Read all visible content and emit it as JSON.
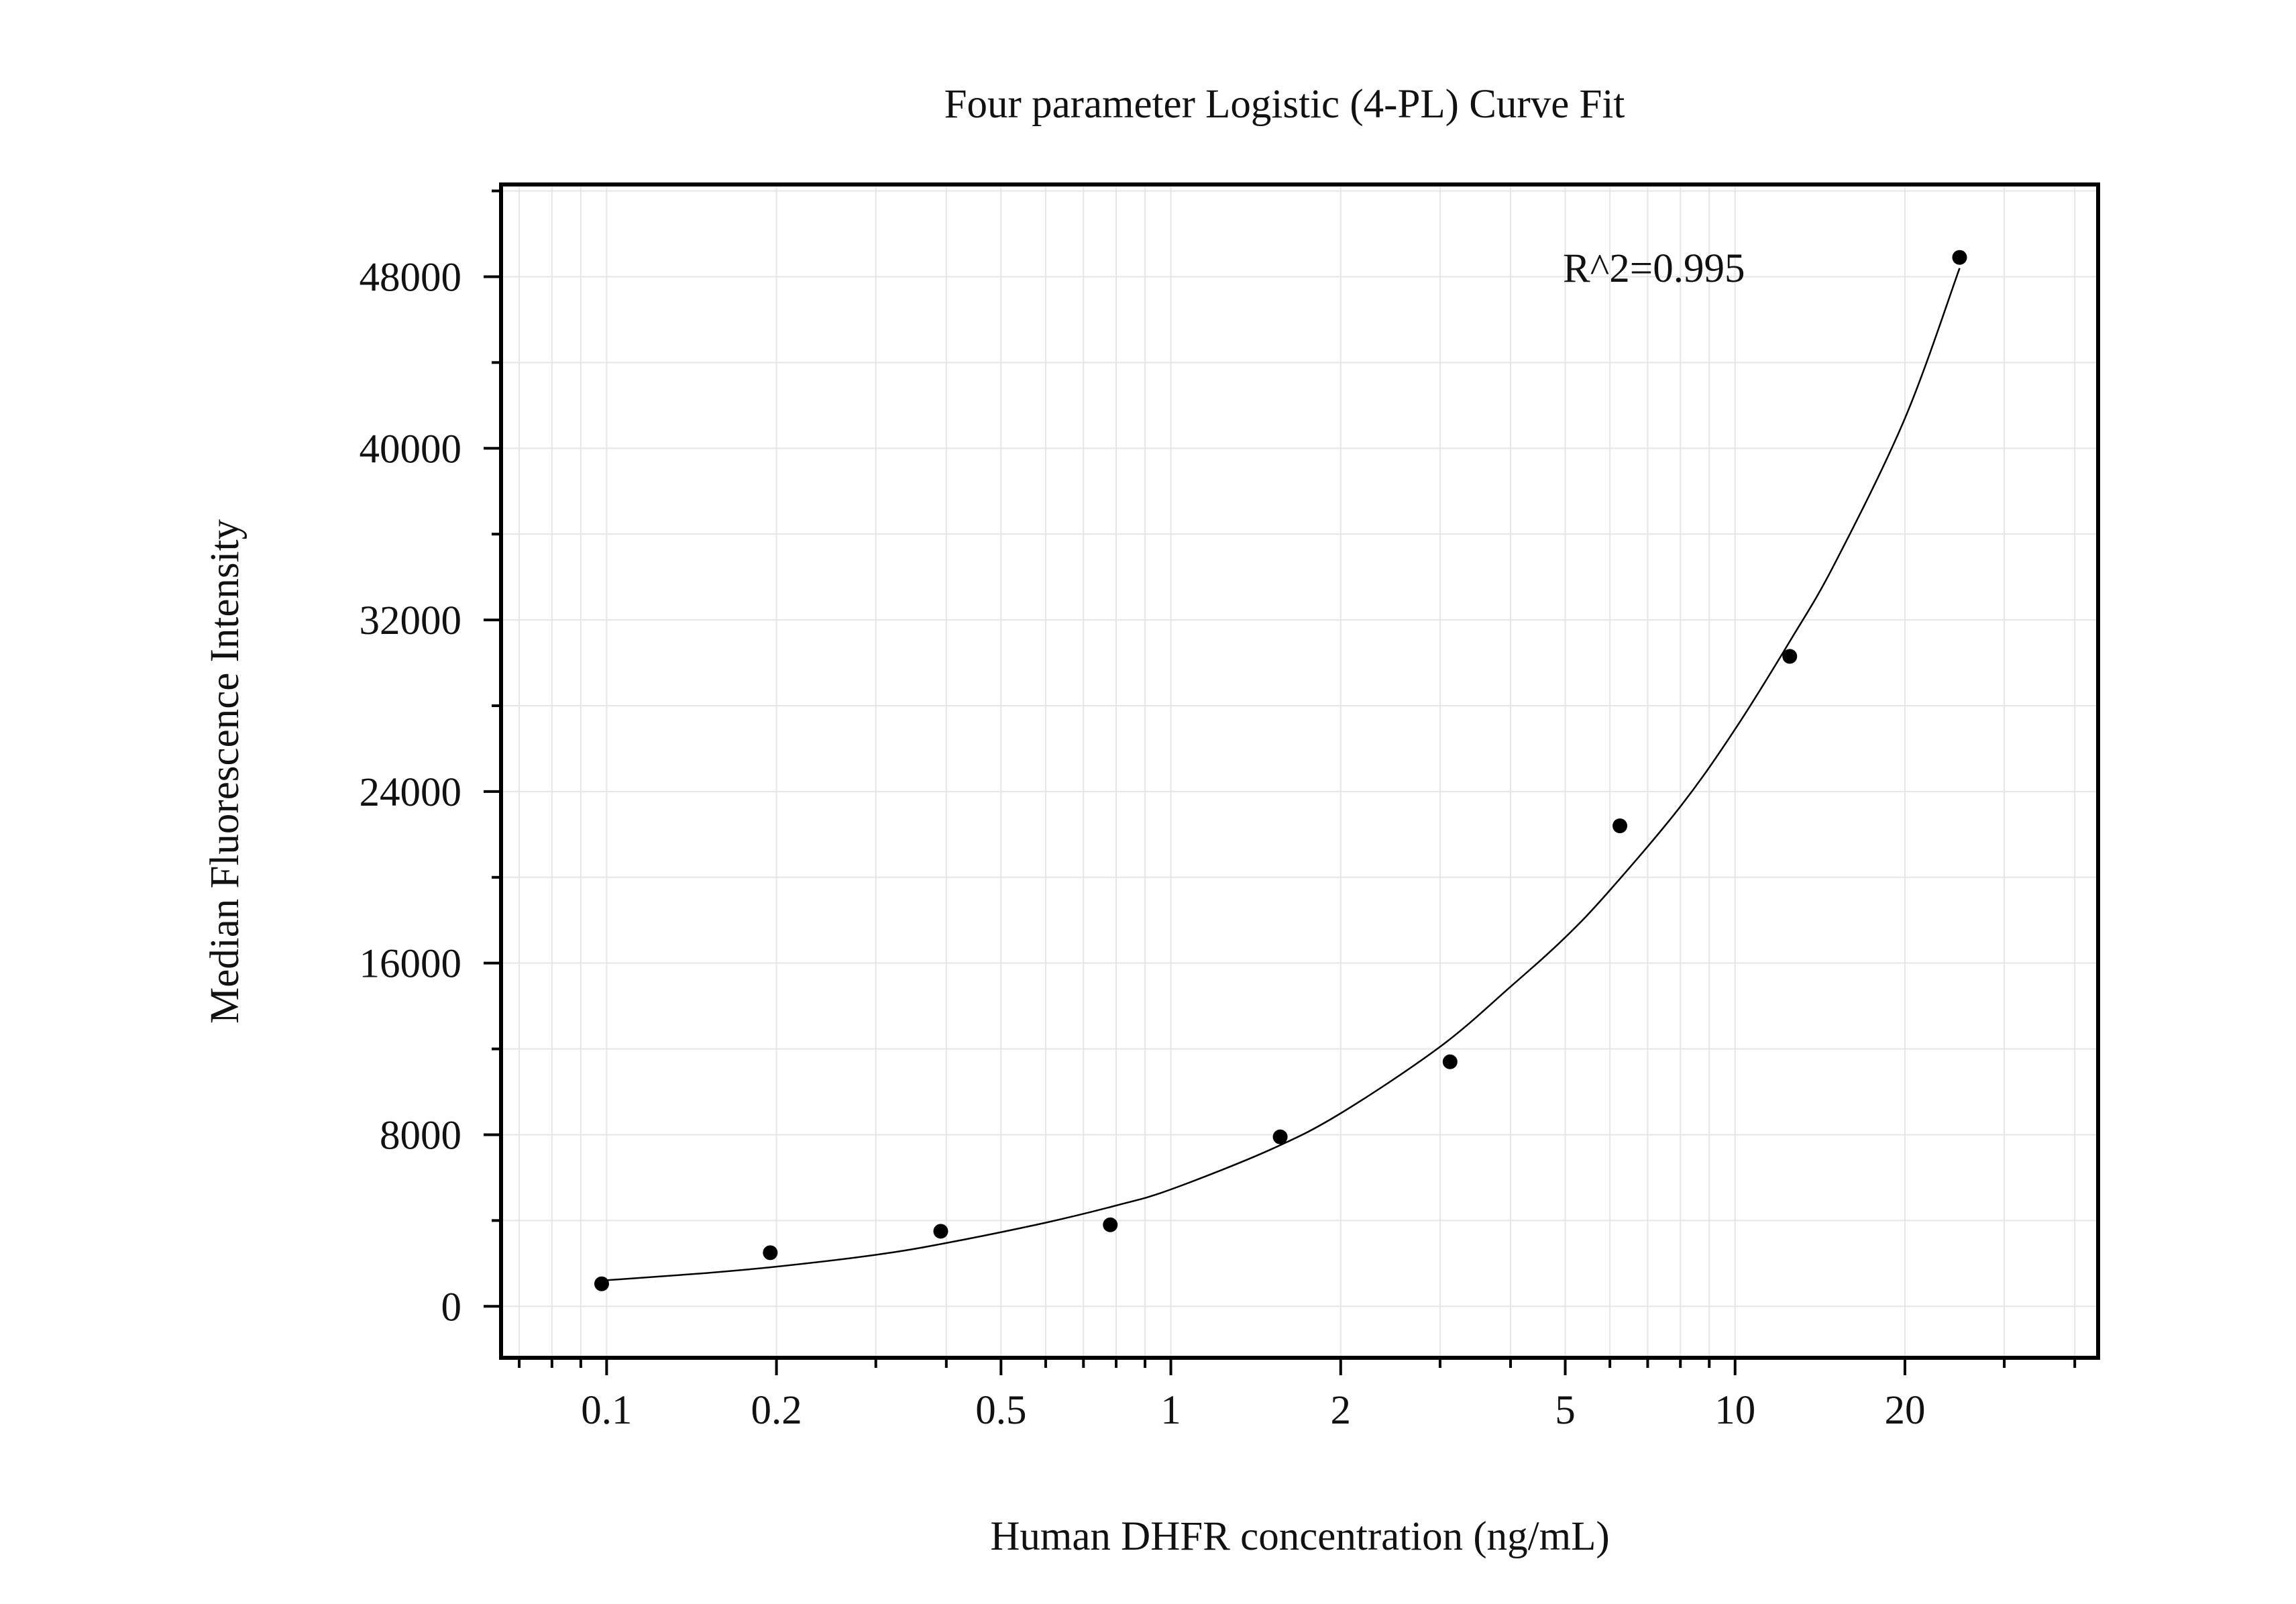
{
  "chart_data": {
    "type": "scatter",
    "title": "Four parameter Logistic (4-PL) Curve Fit",
    "xlabel": "Human DHFR concentration (ng/mL)",
    "ylabel": "Median Fluorescence Intensity",
    "x_scale": "log",
    "xlim": [
      0.065,
      44
    ],
    "ylim": [
      -2400,
      52300
    ],
    "x_ticks": [
      0.1,
      0.2,
      0.5,
      1,
      2,
      5,
      10,
      20
    ],
    "x_tick_labels": [
      "0.1",
      "0.2",
      "0.5",
      "1",
      "2",
      "5",
      "10",
      "20"
    ],
    "y_ticks": [
      0,
      8000,
      16000,
      24000,
      32000,
      40000,
      48000
    ],
    "y_tick_labels": [
      "0",
      "8000",
      "16000",
      "24000",
      "32000",
      "40000",
      "48000"
    ],
    "grid": true,
    "annotation": "R^2=0.995",
    "series": [
      {
        "values": [
          {
            "x": 0.098,
            "y": 1050
          },
          {
            "x": 0.195,
            "y": 2500
          },
          {
            "x": 0.391,
            "y": 3500
          },
          {
            "x": 0.781,
            "y": 3800
          },
          {
            "x": 1.5625,
            "y": 7900
          },
          {
            "x": 3.125,
            "y": 11400
          },
          {
            "x": 6.25,
            "y": 22400
          },
          {
            "x": 12.5,
            "y": 30300
          },
          {
            "x": 25,
            "y": 48900
          }
        ]
      }
    ],
    "fit_curve": {
      "model": "4PL",
      "points": [
        {
          "x": 0.098,
          "y": 1200
        },
        {
          "x": 0.15,
          "y": 1550
        },
        {
          "x": 0.2,
          "y": 1850
        },
        {
          "x": 0.3,
          "y": 2400
        },
        {
          "x": 0.4,
          "y": 2950
        },
        {
          "x": 0.6,
          "y": 3900
        },
        {
          "x": 0.8,
          "y": 4700
        },
        {
          "x": 1.0,
          "y": 5450
        },
        {
          "x": 1.5,
          "y": 7300
        },
        {
          "x": 2.0,
          "y": 9000
        },
        {
          "x": 3.0,
          "y": 12100
        },
        {
          "x": 4.0,
          "y": 14900
        },
        {
          "x": 5.0,
          "y": 17200
        },
        {
          "x": 6.0,
          "y": 19400
        },
        {
          "x": 8.0,
          "y": 23300
        },
        {
          "x": 10.0,
          "y": 26900
        },
        {
          "x": 12.5,
          "y": 31000
        },
        {
          "x": 15.0,
          "y": 34600
        },
        {
          "x": 20.0,
          "y": 41400
        },
        {
          "x": 25.0,
          "y": 48400
        }
      ]
    },
    "colors": {
      "marker": "#000000",
      "curve": "#000000",
      "grid": "#e6e6e6",
      "frame": "#000000"
    }
  }
}
